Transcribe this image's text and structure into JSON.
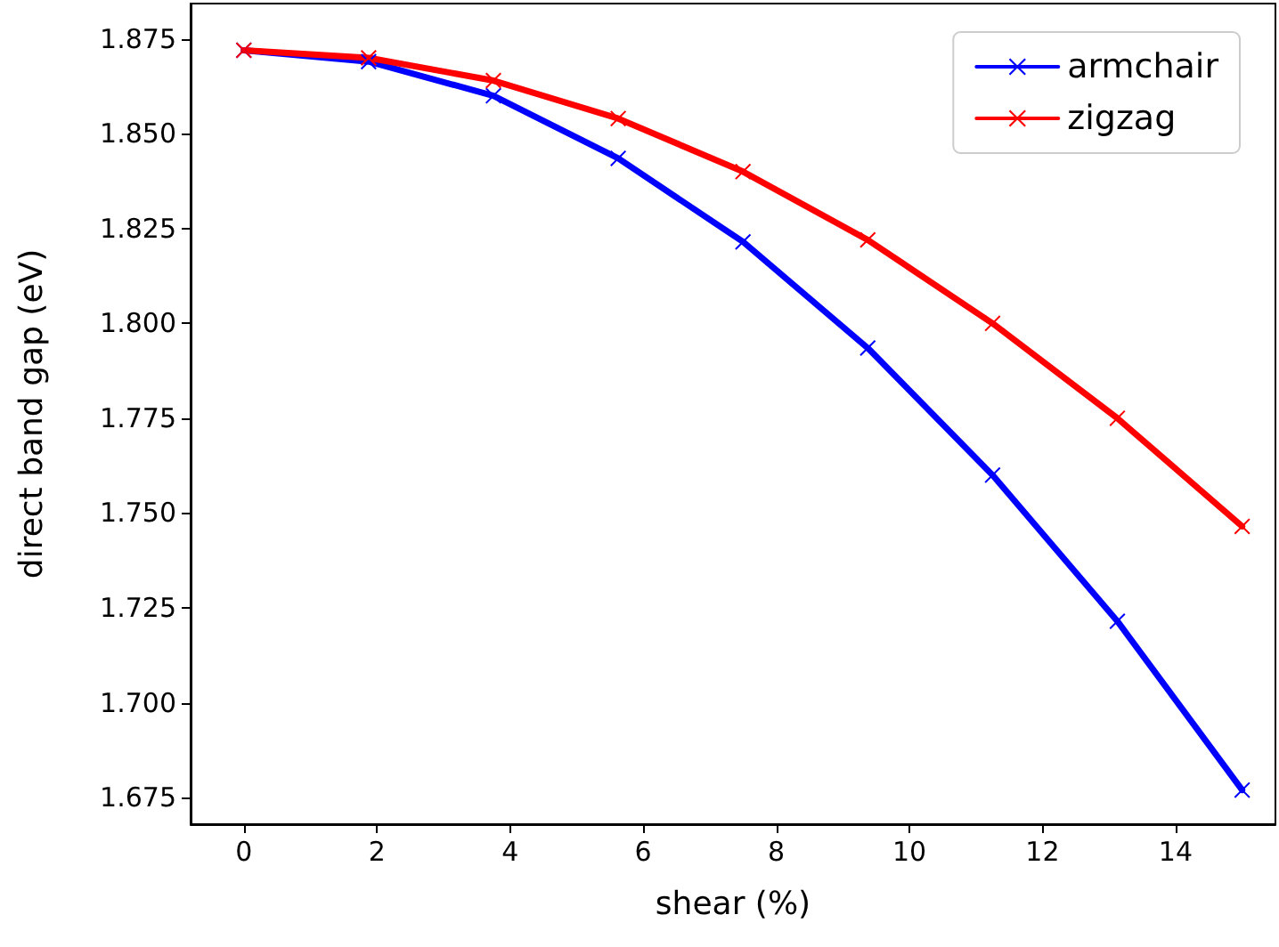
{
  "chart_data": {
    "type": "line",
    "xlabel": "shear (%)",
    "ylabel": "direct band gap (eV)",
    "x": [
      0,
      1.875,
      3.75,
      5.625,
      7.5,
      9.375,
      11.25,
      13.125,
      15
    ],
    "series": [
      {
        "name": "armchair",
        "color": "#0000ff",
        "values": [
          1.872,
          1.869,
          1.86,
          1.8435,
          1.8215,
          1.7935,
          1.76,
          1.7215,
          1.677
        ]
      },
      {
        "name": "zigzag",
        "color": "#ff0000",
        "values": [
          1.872,
          1.87,
          1.864,
          1.854,
          1.84,
          1.822,
          1.8,
          1.775,
          1.7465
        ]
      }
    ],
    "xlim": [
      -0.8,
      15.5
    ],
    "ylim": [
      1.668,
      1.8843
    ],
    "xticks": [
      0,
      2,
      4,
      6,
      8,
      10,
      12,
      14
    ],
    "yticks": [
      {
        "value": 1.675,
        "label": "1.675"
      },
      {
        "value": 1.7,
        "label": "1.700"
      },
      {
        "value": 1.725,
        "label": "1.725"
      },
      {
        "value": 1.75,
        "label": "1.750"
      },
      {
        "value": 1.775,
        "label": "1.775"
      },
      {
        "value": 1.8,
        "label": "1.800"
      },
      {
        "value": 1.825,
        "label": "1.825"
      },
      {
        "value": 1.85,
        "label": "1.850"
      },
      {
        "value": 1.875,
        "label": "1.875"
      }
    ],
    "legend": "top right",
    "grid": false,
    "marker": "cross",
    "line_style": "solid"
  }
}
